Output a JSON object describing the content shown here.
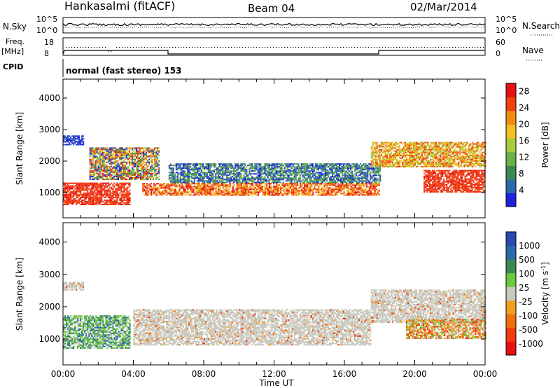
{
  "header": {
    "station": "Hankasalmi (fitACF)",
    "beam": "Beam 04",
    "date": "02/Mar/2014"
  },
  "nsky_panel": {
    "label": "N.Sky",
    "tick_top": "10^5",
    "tick_bottom": "10^0",
    "right_label": "N.Search",
    "right_tick_top": "10^5",
    "right_tick_bottom": "10^0"
  },
  "freq_panel": {
    "label_line1": "Freq.",
    "label_line2": "[MHz]",
    "tick_top": "18",
    "tick_bottom": "8",
    "right_label": "Nave",
    "right_tick_top": "60",
    "right_tick_bottom": "0"
  },
  "cpid_panel": {
    "label": "CPID",
    "mode_text": "normal (fast stereo) 153"
  },
  "time_axis": {
    "label": "Time UT",
    "ticks": [
      "00:00",
      "04:00",
      "08:00",
      "12:00",
      "16:00",
      "20:00",
      "00:00"
    ]
  },
  "colors": {
    "power": [
      "#2020e0",
      "#2a6aa8",
      "#3a8a50",
      "#6ab04a",
      "#a8cc3a",
      "#f0c020",
      "#f08c10",
      "#f04010",
      "#e81010"
    ],
    "velocity": [
      "#2a4ab0",
      "#2a6aa8",
      "#3a8a50",
      "#6ac83a",
      "#c8c8be",
      "#f0a020",
      "#f07010",
      "#f03a10",
      "#e81010"
    ],
    "ground_scatter": "#c8c8be"
  },
  "chart_data": [
    {
      "type": "heatmap",
      "title": "",
      "xlabel": "",
      "ylabel": "Slant Range [km]",
      "xlim": [
        0,
        24
      ],
      "ylim": [
        200,
        4600
      ],
      "yticks": [
        1000,
        2000,
        3000,
        4000
      ],
      "colorbar": {
        "label": "Power [dB]",
        "ticks": [
          "4",
          "8",
          "12",
          "16",
          "20",
          "24",
          "28"
        ],
        "range": [
          0,
          30
        ]
      },
      "bands": [
        {
          "t0": 0.0,
          "t1": 3.8,
          "r0": 600,
          "r1": 1300,
          "level": "red"
        },
        {
          "t0": 0.0,
          "t1": 1.2,
          "r0": 2500,
          "r1": 2800,
          "level": "blue"
        },
        {
          "t0": 1.5,
          "t1": 5.5,
          "r0": 1400,
          "r1": 2400,
          "level": "mixed"
        },
        {
          "t0": 4.5,
          "t1": 18.0,
          "r0": 900,
          "r1": 1300,
          "level": "red-orange"
        },
        {
          "t0": 6.0,
          "t1": 18.0,
          "r0": 1300,
          "r1": 1900,
          "level": "blue-green"
        },
        {
          "t0": 17.5,
          "t1": 24.0,
          "r0": 1800,
          "r1": 2600,
          "level": "orange"
        },
        {
          "t0": 20.5,
          "t1": 24.0,
          "r0": 1000,
          "r1": 1700,
          "level": "red"
        }
      ]
    },
    {
      "type": "heatmap",
      "title": "",
      "xlabel": "Time UT",
      "ylabel": "Slant Range [km]",
      "xlim": [
        0,
        24
      ],
      "ylim": [
        200,
        4600
      ],
      "yticks": [
        1000,
        2000,
        3000,
        4000
      ],
      "colorbar": {
        "label": "Velocity [m s^-1]",
        "ticks": [
          "1000",
          "500",
          "100",
          "25",
          "-25",
          "-100",
          "-500",
          "-1000"
        ]
      },
      "bands": [
        {
          "t0": 0.0,
          "t1": 3.8,
          "r0": 700,
          "r1": 1700,
          "level": "green-blue"
        },
        {
          "t0": 0.0,
          "t1": 1.2,
          "r0": 2500,
          "r1": 2750,
          "level": "grey"
        },
        {
          "t0": 4.0,
          "t1": 17.5,
          "r0": 800,
          "r1": 1900,
          "level": "grey"
        },
        {
          "t0": 17.5,
          "t1": 24.0,
          "r0": 1500,
          "r1": 2500,
          "level": "grey"
        },
        {
          "t0": 19.5,
          "t1": 24.0,
          "r0": 1000,
          "r1": 1600,
          "level": "orange"
        }
      ]
    }
  ]
}
